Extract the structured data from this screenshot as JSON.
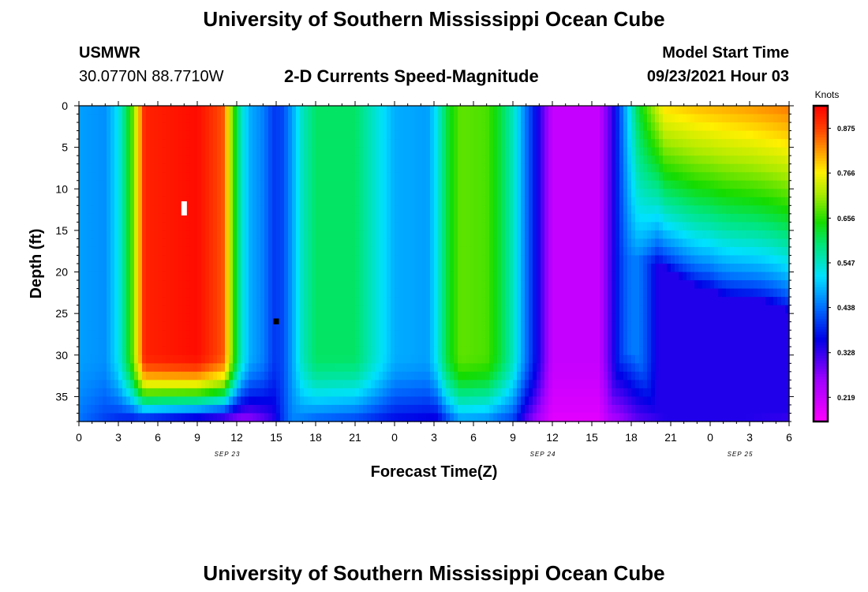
{
  "page": {
    "title": "University of Southern Mississippi Ocean Cube",
    "footer_title": "University of Southern Mississippi Ocean Cube"
  },
  "header": {
    "station": "USMWR",
    "coords": "30.0770N  88.7710W",
    "chart_title": "2-D Currents Speed-Magnitude",
    "model_label": "Model Start Time",
    "model_time": "09/23/2021 Hour 03"
  },
  "chart_data": {
    "type": "heatmap",
    "title": "2-D Currents Speed-Magnitude",
    "xlabel": "Forecast Time(Z)",
    "ylabel": "Depth (ft)",
    "x_ticks": [
      "0",
      "3",
      "6",
      "9",
      "12",
      "15",
      "18",
      "21",
      "0",
      "3",
      "6",
      "9",
      "12",
      "15",
      "18",
      "21",
      "0",
      "3",
      "6"
    ],
    "x_range_hours": [
      0,
      54
    ],
    "date_labels": [
      {
        "hour": 12,
        "label": "SEP 23"
      },
      {
        "hour": 36,
        "label": "SEP 24"
      },
      {
        "hour": 51,
        "label": "SEP 25"
      }
    ],
    "y_ticks": [
      "0",
      "5",
      "10",
      "15",
      "20",
      "25",
      "30",
      "35"
    ],
    "y_range_ft": [
      0,
      38
    ],
    "colorbar": {
      "unit": "Knots",
      "min": 0.16,
      "max": 0.93,
      "tick_values": [
        0.219,
        0.328,
        0.438,
        0.547,
        0.656,
        0.766,
        0.875
      ],
      "tick_labels": [
        "0.219",
        "0.328",
        "0.438",
        "0.547",
        "0.656",
        "0.766",
        "0.875"
      ]
    },
    "columns": [
      {
        "hour": 0.0,
        "v": 0.47,
        "bottom": 0.44
      },
      {
        "hour": 2.0,
        "v": 0.46,
        "bottom": 0.4
      },
      {
        "hour": 3.0,
        "v": 0.52,
        "bottom": 0.38
      },
      {
        "hour": 4.0,
        "v": 0.66,
        "bottom": 0.36
      },
      {
        "hour": 4.6,
        "v": 0.8,
        "bottom": 0.36
      },
      {
        "hour": 5.0,
        "v": 0.9,
        "bottom": 0.35
      },
      {
        "hour": 9.0,
        "v": 0.92,
        "bottom": 0.3
      },
      {
        "hour": 11.0,
        "v": 0.86,
        "bottom": 0.27
      },
      {
        "hour": 11.6,
        "v": 0.7,
        "bottom": 0.26
      },
      {
        "hour": 12.3,
        "v": 0.55,
        "bottom": 0.25
      },
      {
        "hour": 13.0,
        "v": 0.48,
        "bottom": 0.26
      },
      {
        "hour": 14.0,
        "v": 0.45,
        "bottom": 0.29
      },
      {
        "hour": 14.8,
        "v": 0.4,
        "bottom": 0.33
      },
      {
        "hour": 15.5,
        "v": 0.41,
        "bottom": 0.4
      },
      {
        "hour": 16.2,
        "v": 0.47,
        "bottom": 0.45
      },
      {
        "hour": 17.0,
        "v": 0.55,
        "bottom": 0.44
      },
      {
        "hour": 18.0,
        "v": 0.6,
        "bottom": 0.42
      },
      {
        "hour": 21.0,
        "v": 0.6,
        "bottom": 0.4
      },
      {
        "hour": 22.5,
        "v": 0.54,
        "bottom": 0.38
      },
      {
        "hour": 24.0,
        "v": 0.48,
        "bottom": 0.36
      },
      {
        "hour": 26.5,
        "v": 0.47,
        "bottom": 0.35
      },
      {
        "hour": 27.2,
        "v": 0.52,
        "bottom": 0.34
      },
      {
        "hour": 28.0,
        "v": 0.62,
        "bottom": 0.4
      },
      {
        "hour": 29.0,
        "v": 0.68,
        "bottom": 0.46
      },
      {
        "hour": 31.0,
        "v": 0.67,
        "bottom": 0.45
      },
      {
        "hour": 32.0,
        "v": 0.62,
        "bottom": 0.42
      },
      {
        "hour": 33.0,
        "v": 0.55,
        "bottom": 0.4
      },
      {
        "hour": 34.0,
        "v": 0.44,
        "bottom": 0.3
      },
      {
        "hour": 34.8,
        "v": 0.36,
        "bottom": 0.25
      },
      {
        "hour": 36.0,
        "v": 0.22,
        "bottom": 0.19
      },
      {
        "hour": 39.5,
        "v": 0.22,
        "bottom": 0.19
      },
      {
        "hour": 40.5,
        "v": 0.32,
        "bottom": 0.24
      },
      {
        "hour": 41.3,
        "v": 0.44,
        "bottom": 0.26
      },
      {
        "hour": 42.5,
        "v": 0.62,
        "bottom": 0.3
      },
      {
        "hour": 44.5,
        "v": 0.78,
        "bottom": 0.33
      },
      {
        "hour": 47.0,
        "v": 0.8,
        "bottom": 0.34
      },
      {
        "hour": 51.0,
        "v": 0.82,
        "bottom": 0.33
      },
      {
        "hour": 54.0,
        "v": 0.84,
        "bottom": 0.32
      }
    ],
    "markers": [
      {
        "hour": 8.0,
        "depth_from": 11.5,
        "depth_to": 13.2,
        "color": "#ffffff"
      },
      {
        "hour": 15.0,
        "depth_from": 25.6,
        "depth_to": 26.3,
        "color": "#000000"
      }
    ]
  }
}
